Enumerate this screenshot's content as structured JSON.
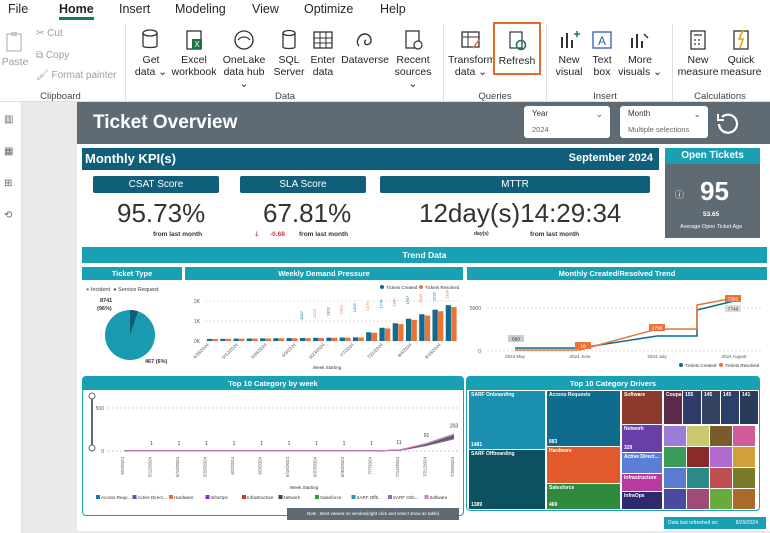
{
  "menu": {
    "file": "File",
    "home": "Home",
    "insert": "Insert",
    "modeling": "Modeling",
    "view": "View",
    "optimize": "Optimize",
    "help": "Help"
  },
  "ribbon": {
    "paste": "Paste",
    "cut": "Cut",
    "copy": "Copy",
    "format_painter": "Format painter",
    "clipboard": "Clipboard",
    "get_data": [
      "Get",
      "data ⌄"
    ],
    "excel": [
      "Excel",
      "workbook"
    ],
    "onelake": [
      "OneLake",
      "data hub ⌄"
    ],
    "sql": [
      "SQL",
      "Server"
    ],
    "enter": [
      "Enter",
      "data"
    ],
    "dataverse": "Dataverse",
    "recent": [
      "Recent",
      "sources ⌄"
    ],
    "data_group": "Data",
    "transform": [
      "Transform",
      "data ⌄"
    ],
    "refresh": "Refresh",
    "queries": "Queries",
    "new_visual": [
      "New",
      "visual"
    ],
    "text_box": [
      "Text",
      "box"
    ],
    "more_visuals": [
      "More",
      "visuals ⌄"
    ],
    "insert_group": "Insert",
    "new_measure": [
      "New",
      "measure"
    ],
    "quick_measure": [
      "Quick",
      "measure"
    ],
    "calculations": "Calculations"
  },
  "report": {
    "title": "Ticket Overview",
    "year_label": "Year",
    "year_value": "2024",
    "month_label": "Month",
    "month_value": "Multiple selections",
    "kpi_title": "Monthly KPI(s)",
    "kpi_month": "September 2024",
    "csat_label": "CSAT Score",
    "csat_value": "95.73%",
    "csat_sub": "from last month",
    "sla_label": "SLA Score",
    "sla_value": "67.81%",
    "sla_delta": "-0.68",
    "sla_sub": "from last month",
    "mttr_label": "MTTR",
    "mttr_value": "12day(s)14:29:34",
    "mttr_unit": "day(s)",
    "mttr_sub": "from last month",
    "open_title": "Open Tickets",
    "open_value": "95",
    "open_avg": "53.65",
    "open_avg_label": "Average Open Ticket Age",
    "trend_title": "Trend Data",
    "ticket_type_title": "Ticket Type",
    "weekly_title": "Weekly Demand Pressure",
    "monthly_title": "Monthly Created/Resolved Trend",
    "top10_week_title": "Top 10 Category by week",
    "top10_drivers_title": "Top 10 Category Drivers",
    "note": "Note : Best viewed on window(right click and select show as table)",
    "refreshed_label": "Data last refreshed on:",
    "refreshed_value": "8/29/2024"
  },
  "ticket_type": {
    "legend": [
      "Incident",
      "Service Request"
    ],
    "incident": "8741",
    "incident_pct": "(96%)",
    "service": "467 (6%)",
    "colors": [
      "#1a9ab0",
      "#0b5e73"
    ]
  },
  "weekly_demand": {
    "legend": [
      "Tickets Created",
      "Tickets Resolved"
    ],
    "x": [
      "4/28/2024",
      "5/12/2024",
      "5/26/2024",
      "6/9/2024",
      "6/23/2024",
      "7/7/2024",
      "7/21/2024",
      "8/4/2024",
      "8/18/2024"
    ],
    "yticks": [
      "0K",
      "1K",
      "2K"
    ],
    "xlabel": "Week Starting",
    "value_labels": [
      "1097",
      "1226",
      "1362",
      "1423",
      "1476",
      "1579",
      "1778",
      "1887",
      "1997",
      "2042",
      "2232",
      "2306"
    ]
  },
  "monthly_trend": {
    "legend": [
      "Tickets Created",
      "Tickets Resolved"
    ],
    "x": [
      "2024 May",
      "2024 June",
      "2024 July",
      "2024 August"
    ],
    "yticks": [
      "0",
      "5000"
    ],
    "labels": [
      "560",
      "18",
      "1796",
      "7361",
      "7746"
    ]
  },
  "top10_week": {
    "legend": [
      "Access Requ...",
      "Active Direct...",
      "Hardware",
      "InfraOps",
      "Infrastructure",
      "Network",
      "Salesforce",
      "SARF Offb...",
      "SARF Onb...",
      "Software"
    ],
    "legend_colors": [
      "#1f77b4",
      "#6a4ea0",
      "#e8743b",
      "#8a2be2",
      "#c0392b",
      "#444",
      "#2ca02c",
      "#1a9ab0",
      "#9467bd",
      "#e377c2"
    ],
    "x": [
      "5/12/2024",
      "5/26/2024",
      "6/9/2024",
      "6/23/2024",
      "7/7/2024",
      "7/21/2024",
      "8/4/2024",
      "8/18/2024"
    ],
    "x_full": [
      "5/5/2024",
      "5/12/2024",
      "5/19/2024",
      "5/26/2024",
      "6/2/2024",
      "6/9/2024",
      "6/16/2024",
      "6/23/2024",
      "6/30/2024",
      "7/7/2024",
      "7/14/2024",
      "7/21/2024",
      "7/28/2024"
    ],
    "yticks": [
      "0",
      "500"
    ],
    "xlabel": "Week Starting",
    "labels": [
      "1",
      "1",
      "1",
      "1",
      "1",
      "1",
      "1",
      "1",
      "1",
      "11",
      "91",
      "203"
    ]
  },
  "drivers": [
    {
      "name": "SARF Onboarding",
      "value": "1481",
      "color": "#1a8fb0"
    },
    {
      "name": "SARF Offboarding",
      "value": "1389",
      "color": "#0d5060"
    },
    {
      "name": "Access Requests",
      "value": "883",
      "color": "#0f6c8c"
    },
    {
      "name": "Hardware",
      "value": "",
      "color": "#e05a2b"
    },
    {
      "name": "Salesforce",
      "value": "469",
      "color": "#2e8b3e"
    },
    {
      "name": "Software",
      "value": "",
      "color": "#8b3a2b"
    },
    {
      "name": "Network",
      "value": "329",
      "color": "#6a3ea8"
    },
    {
      "name": "Active Direct...",
      "value": "",
      "color": "#5b7fd6"
    },
    {
      "name": "Infrastructure",
      "value": "",
      "color": "#b83aa0"
    },
    {
      "name": "InfraOps",
      "value": "",
      "color": "#2d2a6e"
    }
  ],
  "drivers_small": [
    "Coupa",
    "155",
    "145",
    "145",
    "141"
  ]
}
